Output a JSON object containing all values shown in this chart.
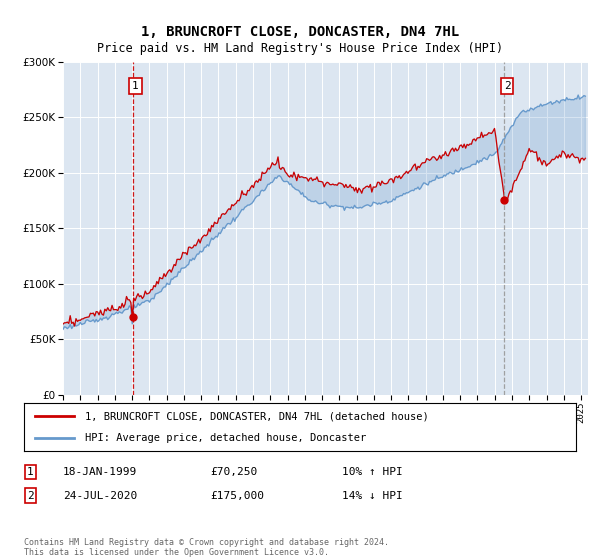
{
  "title": "1, BRUNCROFT CLOSE, DONCASTER, DN4 7HL",
  "subtitle": "Price paid vs. HM Land Registry's House Price Index (HPI)",
  "legend_line1": "1, BRUNCROFT CLOSE, DONCASTER, DN4 7HL (detached house)",
  "legend_line2": "HPI: Average price, detached house, Doncaster",
  "annotation1_date": "18-JAN-1999",
  "annotation1_price": "£70,250",
  "annotation1_hpi": "10% ↑ HPI",
  "annotation2_date": "24-JUL-2020",
  "annotation2_price": "£175,000",
  "annotation2_hpi": "14% ↓ HPI",
  "footer": "Contains HM Land Registry data © Crown copyright and database right 2024.\nThis data is licensed under the Open Government Licence v3.0.",
  "ylim": [
    0,
    300000
  ],
  "yticks": [
    0,
    50000,
    100000,
    150000,
    200000,
    250000,
    300000
  ],
  "plot_bg": "#dce6f1",
  "line_color_red": "#cc0000",
  "line_color_blue": "#6699cc",
  "vline1_color": "#cc0000",
  "vline1_style": "--",
  "vline2_color": "#999999",
  "vline2_style": "--",
  "sale1_year": 1999.05,
  "sale1_price": 70250,
  "sale2_year": 2020.56,
  "sale2_price": 175000
}
